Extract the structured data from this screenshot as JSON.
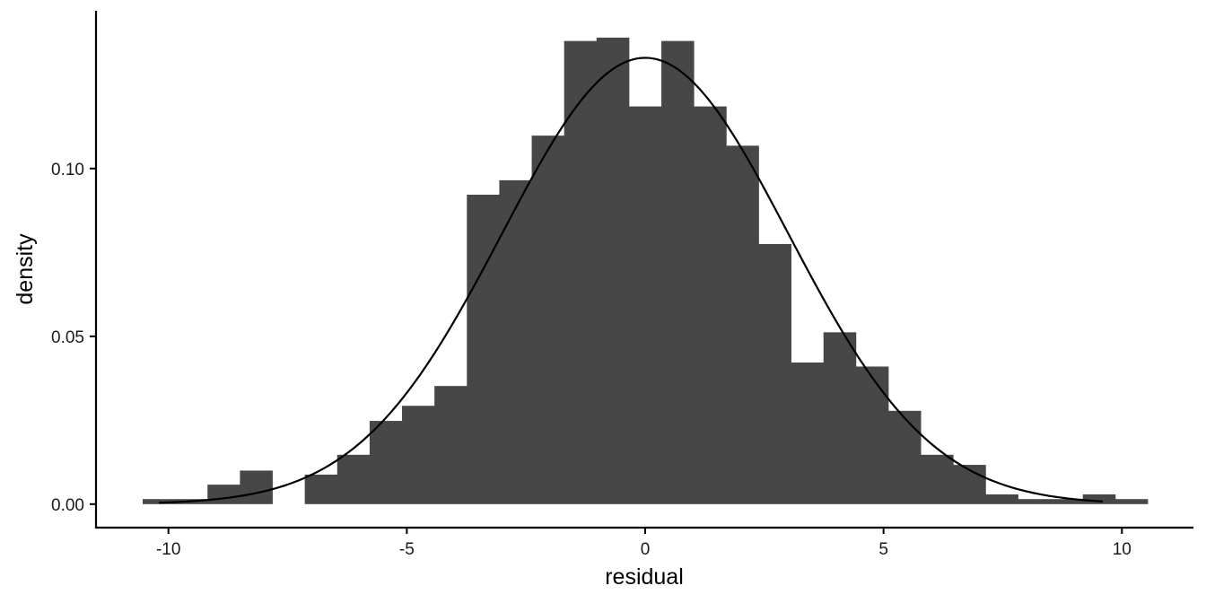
{
  "chart_data": {
    "type": "bar",
    "subtype": "histogram with density curve",
    "title": "",
    "xlabel": "residual",
    "ylabel": "density",
    "xlim": [
      -11.5,
      11.5
    ],
    "ylim": [
      -0.007,
      0.147
    ],
    "x_ticks": [
      -10,
      -5,
      0,
      5,
      10
    ],
    "x_tick_labels": [
      "-10",
      "-5",
      "0",
      "5",
      "10"
    ],
    "y_ticks": [
      0.0,
      0.05,
      0.1
    ],
    "y_tick_labels": [
      "0.00",
      "0.05",
      "0.10"
    ],
    "grid": false,
    "legend": "none",
    "bin_width": 0.68,
    "bins": [
      {
        "x0": -10.54,
        "x1": -9.86,
        "density": 0.0015
      },
      {
        "x0": -9.86,
        "x1": -9.18,
        "density": 0.0015
      },
      {
        "x0": -9.18,
        "x1": -8.5,
        "density": 0.0058
      },
      {
        "x0": -8.5,
        "x1": -7.82,
        "density": 0.01
      },
      {
        "x0": -7.82,
        "x1": -7.14,
        "density": 0.0
      },
      {
        "x0": -7.14,
        "x1": -6.46,
        "density": 0.0088
      },
      {
        "x0": -6.46,
        "x1": -5.78,
        "density": 0.0147
      },
      {
        "x0": -5.78,
        "x1": -5.1,
        "density": 0.0248
      },
      {
        "x0": -5.1,
        "x1": -4.42,
        "density": 0.0293
      },
      {
        "x0": -4.42,
        "x1": -3.74,
        "density": 0.0352
      },
      {
        "x0": -3.74,
        "x1": -3.06,
        "density": 0.0922
      },
      {
        "x0": -3.06,
        "x1": -2.38,
        "density": 0.0965
      },
      {
        "x0": -2.38,
        "x1": -1.7,
        "density": 0.1098
      },
      {
        "x0": -1.7,
        "x1": -1.02,
        "density": 0.138
      },
      {
        "x0": -1.02,
        "x1": -0.34,
        "density": 0.139
      },
      {
        "x0": -0.34,
        "x1": 0.34,
        "density": 0.1185
      },
      {
        "x0": 0.34,
        "x1": 1.02,
        "density": 0.138
      },
      {
        "x0": 1.02,
        "x1": 1.7,
        "density": 0.1185
      },
      {
        "x0": 1.7,
        "x1": 2.38,
        "density": 0.1068
      },
      {
        "x0": 2.38,
        "x1": 3.06,
        "density": 0.0775
      },
      {
        "x0": 3.06,
        "x1": 3.74,
        "density": 0.0422
      },
      {
        "x0": 3.74,
        "x1": 4.42,
        "density": 0.0512
      },
      {
        "x0": 4.42,
        "x1": 5.1,
        "density": 0.041
      },
      {
        "x0": 5.1,
        "x1": 5.78,
        "density": 0.0278
      },
      {
        "x0": 5.78,
        "x1": 6.46,
        "density": 0.0147
      },
      {
        "x0": 6.46,
        "x1": 7.14,
        "density": 0.0117
      },
      {
        "x0": 7.14,
        "x1": 7.82,
        "density": 0.0029
      },
      {
        "x0": 7.82,
        "x1": 8.5,
        "density": 0.0015
      },
      {
        "x0": 8.5,
        "x1": 9.18,
        "density": 0.0015
      },
      {
        "x0": 9.18,
        "x1": 9.86,
        "density": 0.0029
      },
      {
        "x0": 9.86,
        "x1": 10.54,
        "density": 0.0015
      }
    ],
    "density_curve": {
      "distribution": "normal",
      "mean": 0.0,
      "sd": 3.0,
      "x_range": [
        -10.2,
        9.6
      ]
    },
    "colors": {
      "bar_fill": "#474747",
      "curve": "#000000",
      "axis": "#000000"
    }
  }
}
